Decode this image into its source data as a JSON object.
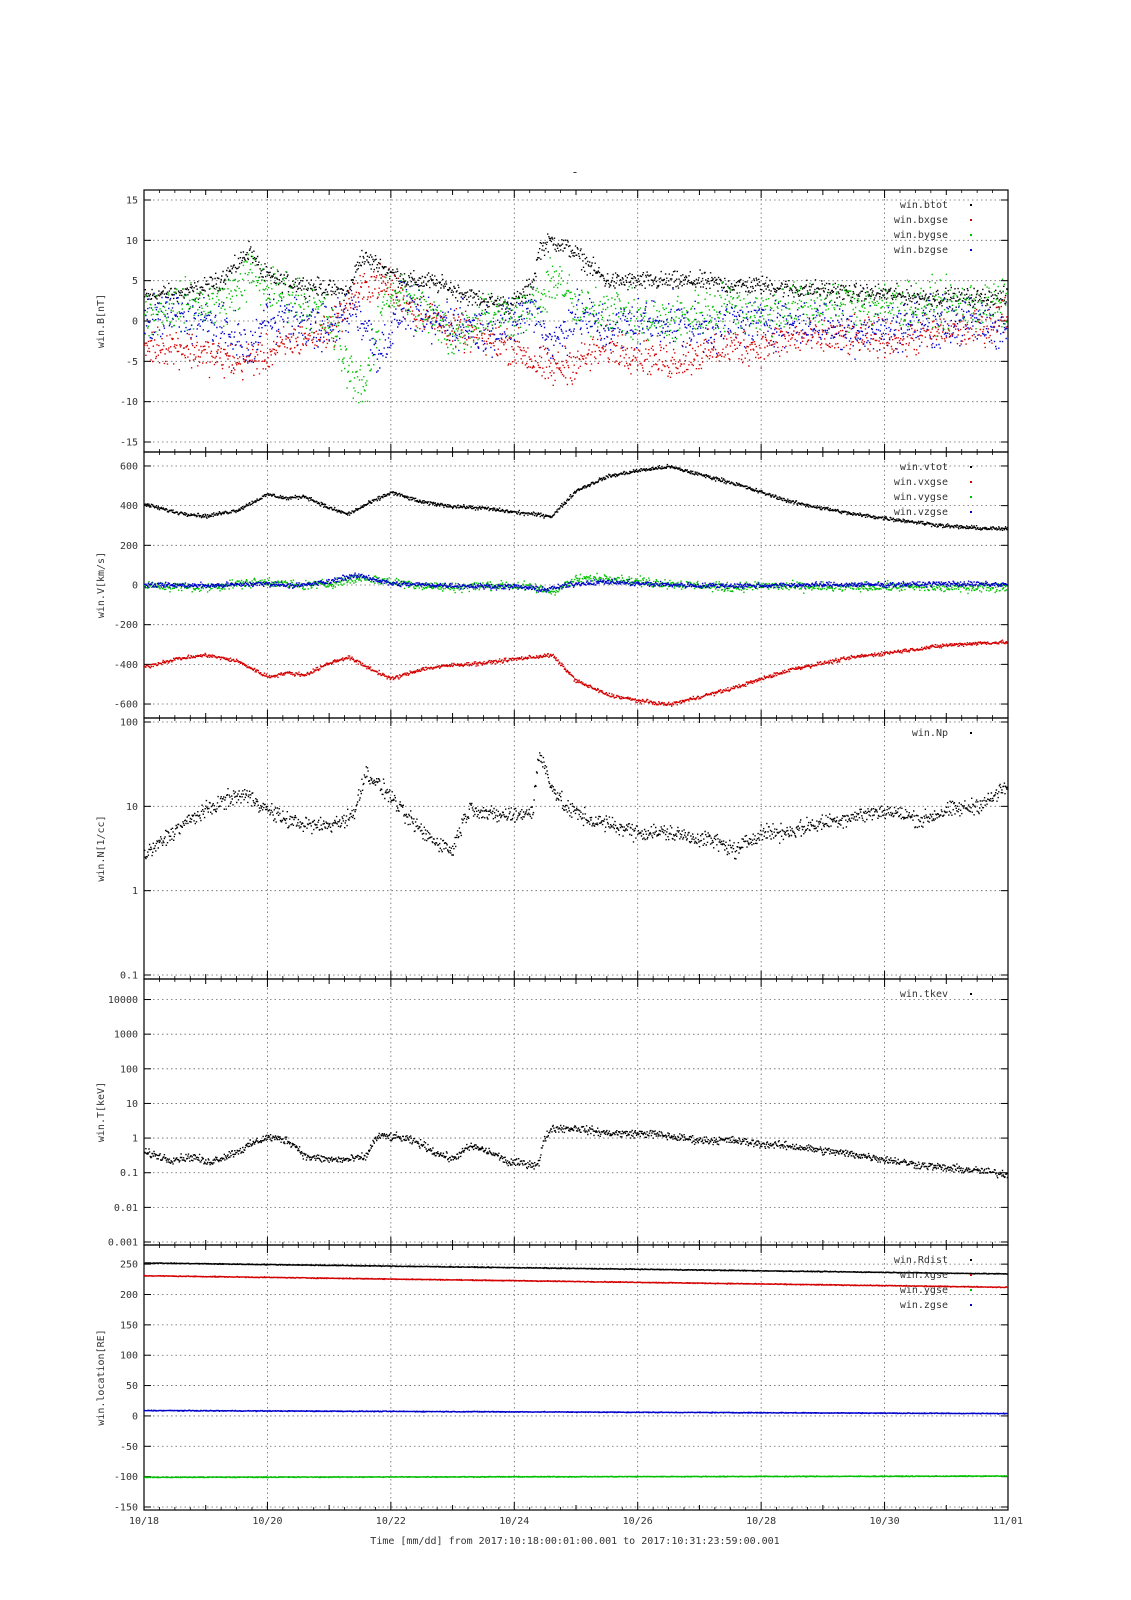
{
  "figure": {
    "title": "-",
    "xaxis_label": "Time [mm/dd]  from 2017:10:18:00:01:00.001  to  2017:10:31:23:59:00.001",
    "x_ticks": [
      "10/18",
      "10/20",
      "10/22",
      "10/24",
      "10/26",
      "10/28",
      "10/30",
      "11/01"
    ]
  },
  "colors": {
    "black": "#000000",
    "red": "#d40000",
    "green": "#00c000",
    "blue": "#0000cc"
  },
  "chart_data": [
    {
      "type": "scatter",
      "ylabel": "win.B[nT]",
      "scale": "linear",
      "ylim": [
        -15,
        15
      ],
      "yticks": [
        "15",
        "10",
        "5",
        "0",
        "-5",
        "-10",
        "-15"
      ],
      "ytick_values": [
        15,
        10,
        5,
        0,
        -5,
        -10,
        -15
      ],
      "grid": true,
      "legend_position": "top-right",
      "x_unit": "days since 10/18",
      "series": [
        {
          "name": "win.btot",
          "color": "black",
          "noise": 0.7,
          "x": [
            0,
            0.3,
            0.6,
            0.9,
            1.2,
            1.5,
            1.7,
            1.9,
            2.2,
            2.6,
            3.0,
            3.3,
            3.5,
            3.8,
            4.0,
            4.3,
            4.6,
            5.0,
            5.3,
            5.6,
            5.9,
            6.1,
            6.3,
            6.4,
            6.6,
            6.9,
            7.2,
            7.5,
            8.0,
            8.5,
            9.0,
            9.5,
            10.0,
            10.5,
            11.0,
            11.5,
            12.0,
            12.5,
            13.0,
            13.5,
            14.0
          ],
          "y": [
            3,
            3.5,
            3.5,
            4,
            5,
            7,
            9,
            6,
            5,
            4.5,
            4,
            3.5,
            8,
            7,
            6,
            5,
            5,
            4,
            3,
            2.5,
            2,
            3,
            5,
            9,
            10,
            9,
            7,
            5,
            5,
            5,
            5,
            4.5,
            4.5,
            4,
            4,
            3.5,
            3.5,
            3,
            3,
            3,
            3
          ]
        },
        {
          "name": "win.bxgse",
          "color": "red",
          "noise": 1.4,
          "x": [
            0,
            0.5,
            1.0,
            1.5,
            2.0,
            2.5,
            3.0,
            3.4,
            3.7,
            4.0,
            4.5,
            5.0,
            5.5,
            6.0,
            6.3,
            6.6,
            7.0,
            7.5,
            8.0,
            8.5,
            9.0,
            9.5,
            10.0,
            10.5,
            11.0,
            11.5,
            12.0,
            12.5,
            13.0,
            13.5,
            14.0
          ],
          "y": [
            -3,
            -3,
            -4,
            -5,
            -4,
            -2,
            -1,
            3,
            5,
            4,
            1,
            -1,
            -2,
            -3,
            -5,
            -6,
            -5,
            -3,
            -4,
            -5,
            -4,
            -3,
            -3,
            -2,
            -2,
            -2,
            -2,
            -2,
            -1,
            -1,
            1
          ]
        },
        {
          "name": "win.bygse",
          "color": "green",
          "noise": 1.8,
          "x": [
            0,
            0.5,
            1.0,
            1.4,
            1.7,
            2.0,
            2.5,
            3.0,
            3.3,
            3.6,
            3.9,
            4.2,
            4.6,
            5.0,
            5.5,
            6.0,
            6.4,
            6.7,
            7.0,
            7.5,
            8.0,
            8.5,
            9.0,
            9.5,
            10.0,
            10.5,
            11.0,
            11.5,
            12.0,
            12.5,
            13.0,
            13.5,
            14.0
          ],
          "y": [
            1,
            2,
            2,
            3,
            6,
            4,
            3,
            0,
            -6,
            -8,
            4,
            3,
            1,
            -2,
            1,
            1,
            2,
            6,
            1,
            2,
            0,
            0,
            1,
            2,
            1,
            2,
            2,
            2,
            2,
            2,
            2,
            2,
            2
          ]
        },
        {
          "name": "win.bzgse",
          "color": "blue",
          "noise": 1.8,
          "x": [
            0,
            0.5,
            1.0,
            1.5,
            1.7,
            2.0,
            2.5,
            3.0,
            3.4,
            3.8,
            4.2,
            4.6,
            5.0,
            5.5,
            6.0,
            6.3,
            6.6,
            7.0,
            7.5,
            8.0,
            8.5,
            9.0,
            9.5,
            10.0,
            10.5,
            11.0,
            11.5,
            12.0,
            12.5,
            13.0,
            13.5,
            14.0
          ],
          "y": [
            0,
            1,
            0,
            -2,
            -4,
            1,
            0,
            -1,
            2,
            -4,
            2,
            0,
            0,
            -1,
            0,
            2,
            -3,
            1,
            -1,
            0,
            0,
            -1,
            0,
            0,
            0,
            0,
            -1,
            -1,
            0,
            0,
            0,
            -1
          ]
        }
      ]
    },
    {
      "type": "scatter",
      "ylabel": "win.V[km/s]",
      "scale": "linear",
      "ylim": [
        -620,
        620
      ],
      "yticks": [
        "600",
        "400",
        "200",
        "0",
        "-200",
        "-400",
        "-600"
      ],
      "ytick_values": [
        600,
        400,
        200,
        0,
        -200,
        -400,
        -600
      ],
      "grid": true,
      "legend_position": "top-right",
      "x_unit": "days since 10/18",
      "series": [
        {
          "name": "win.vtot",
          "color": "black",
          "noise": 6,
          "x": [
            0,
            0.5,
            1.0,
            1.5,
            2.0,
            2.3,
            2.6,
            3.0,
            3.3,
            3.6,
            4.0,
            4.5,
            5.0,
            5.5,
            6.0,
            6.3,
            6.6,
            7.0,
            7.5,
            8.0,
            8.5,
            9.0,
            9.5,
            10.0,
            10.5,
            11.0,
            11.5,
            12.0,
            12.5,
            13.0,
            13.5,
            14.0
          ],
          "y": [
            410,
            370,
            350,
            380,
            460,
            440,
            450,
            390,
            360,
            410,
            470,
            420,
            400,
            390,
            370,
            360,
            350,
            480,
            550,
            580,
            600,
            560,
            520,
            470,
            420,
            390,
            360,
            340,
            320,
            300,
            290,
            285
          ]
        },
        {
          "name": "win.vxgse",
          "color": "red",
          "noise": 6,
          "x": [
            0,
            0.5,
            1.0,
            1.5,
            2.0,
            2.3,
            2.6,
            3.0,
            3.3,
            3.6,
            4.0,
            4.5,
            5.0,
            5.5,
            6.0,
            6.3,
            6.6,
            7.0,
            7.5,
            8.0,
            8.5,
            9.0,
            9.5,
            10.0,
            10.5,
            11.0,
            11.5,
            12.0,
            12.5,
            13.0,
            13.5,
            14.0
          ],
          "y": [
            -410,
            -370,
            -350,
            -380,
            -460,
            -440,
            -450,
            -390,
            -360,
            -410,
            -470,
            -420,
            -400,
            -390,
            -370,
            -360,
            -350,
            -480,
            -550,
            -580,
            -600,
            -560,
            -520,
            -470,
            -420,
            -390,
            -360,
            -340,
            -320,
            -300,
            -290,
            -285
          ]
        },
        {
          "name": "win.vygse",
          "color": "green",
          "noise": 14,
          "x": [
            0,
            1.0,
            1.5,
            2.0,
            2.5,
            3.0,
            3.5,
            4.0,
            4.5,
            5.0,
            5.5,
            6.0,
            6.3,
            6.6,
            7.0,
            7.5,
            8.0,
            8.5,
            9.0,
            9.5,
            10.0,
            11.0,
            12.0,
            13.0,
            14.0
          ],
          "y": [
            0,
            -10,
            10,
            20,
            0,
            10,
            40,
            20,
            0,
            -10,
            0,
            0,
            -10,
            -30,
            30,
            40,
            20,
            10,
            0,
            -10,
            0,
            -10,
            -5,
            -10,
            -5
          ]
        },
        {
          "name": "win.vzgse",
          "color": "blue",
          "noise": 8,
          "x": [
            0,
            1.0,
            2.0,
            2.5,
            3.0,
            3.2,
            3.5,
            4.0,
            5.0,
            6.0,
            6.5,
            7.0,
            7.5,
            8.0,
            9.0,
            10.0,
            11.0,
            12.0,
            13.0,
            14.0
          ],
          "y": [
            5,
            0,
            10,
            0,
            20,
            40,
            50,
            10,
            0,
            -5,
            -20,
            10,
            20,
            10,
            0,
            0,
            5,
            5,
            10,
            5
          ]
        }
      ]
    },
    {
      "type": "scatter",
      "ylabel": "win.N[1/cc]",
      "scale": "log",
      "ylim": [
        0.1,
        100
      ],
      "yticks": [
        "100",
        "10",
        "1",
        "0.1"
      ],
      "ytick_values": [
        100,
        10,
        1,
        0.1
      ],
      "grid": true,
      "legend_position": "top-right",
      "x_unit": "days since 10/18",
      "series": [
        {
          "name": "win.Np",
          "color": "black",
          "noise": 0.06,
          "x": [
            0,
            0.3,
            0.6,
            1.0,
            1.3,
            1.6,
            1.8,
            2.0,
            2.3,
            2.7,
            3.0,
            3.2,
            3.4,
            3.6,
            3.8,
            4.2,
            4.5,
            4.7,
            5.0,
            5.3,
            5.6,
            6.0,
            6.3,
            6.4,
            6.6,
            6.8,
            7.2,
            7.6,
            8.0,
            8.4,
            8.8,
            9.2,
            9.6,
            10.0,
            10.4,
            10.8,
            11.2,
            11.6,
            12.0,
            12.3,
            12.6,
            13.0,
            13.4,
            13.7,
            14.0
          ],
          "y": [
            2.5,
            4,
            6,
            9,
            12,
            14,
            12,
            9,
            7,
            6,
            6,
            7,
            8,
            25,
            18,
            8,
            5,
            4,
            3,
            10,
            8,
            8,
            9,
            40,
            17,
            10,
            7,
            6,
            5,
            5,
            4.5,
            4,
            3,
            5,
            5,
            6,
            7,
            8,
            9,
            8,
            7,
            9,
            10,
            12,
            18
          ]
        }
      ]
    },
    {
      "type": "scatter",
      "ylabel": "win.T[keV]",
      "scale": "log",
      "ylim": [
        0.001,
        30000
      ],
      "yticks": [
        "10000",
        "1000",
        "100",
        "10",
        "1",
        "0.1",
        "0.01",
        "0.001"
      ],
      "ytick_values": [
        10000,
        1000,
        100,
        10,
        1,
        0.1,
        0.01,
        0.001
      ],
      "grid": true,
      "legend_position": "top-right",
      "x_unit": "days since 10/18",
      "series": [
        {
          "name": "win.tkev",
          "color": "black",
          "noise": 0.07,
          "x": [
            0,
            0.4,
            0.8,
            1.0,
            1.3,
            1.6,
            2.0,
            2.3,
            2.6,
            3.0,
            3.3,
            3.6,
            3.8,
            4.1,
            4.4,
            4.7,
            5.0,
            5.3,
            5.6,
            5.9,
            6.1,
            6.3,
            6.4,
            6.6,
            7.0,
            7.4,
            7.8,
            8.2,
            8.6,
            9.0,
            9.5,
            10.0,
            10.5,
            11.0,
            11.5,
            12.0,
            12.5,
            13.0,
            13.5,
            14.0
          ],
          "y": [
            0.4,
            0.25,
            0.3,
            0.2,
            0.3,
            0.5,
            1.1,
            0.9,
            0.3,
            0.25,
            0.25,
            0.3,
            1.2,
            1.1,
            0.8,
            0.4,
            0.25,
            0.6,
            0.4,
            0.2,
            0.2,
            0.18,
            0.2,
            2.0,
            2.0,
            1.5,
            1.4,
            1.4,
            1.1,
            0.9,
            0.9,
            0.7,
            0.6,
            0.45,
            0.35,
            0.25,
            0.18,
            0.14,
            0.12,
            0.09
          ]
        }
      ]
    },
    {
      "type": "scatter",
      "ylabel": "win.location[RE]",
      "scale": "linear",
      "ylim": [
        -150,
        270
      ],
      "yticks": [
        "250",
        "200",
        "150",
        "100",
        "50",
        "0",
        "-50",
        "-100",
        "-150"
      ],
      "ytick_values": [
        250,
        200,
        150,
        100,
        50,
        0,
        -50,
        -100,
        -150
      ],
      "grid": true,
      "legend_position": "top-right",
      "x_unit": "days since 10/18",
      "series": [
        {
          "name": "win.Rdist",
          "color": "black",
          "noise": 0.4,
          "x": [
            0,
            14
          ],
          "y": [
            253,
            235
          ]
        },
        {
          "name": "win.xgse",
          "color": "red",
          "noise": 0.4,
          "x": [
            0,
            14
          ],
          "y": [
            232,
            213
          ]
        },
        {
          "name": "win.ygse",
          "color": "green",
          "noise": 0.4,
          "x": [
            0,
            14
          ],
          "y": [
            -100,
            -98
          ]
        },
        {
          "name": "win.zgse",
          "color": "blue",
          "noise": 0.4,
          "x": [
            0,
            14
          ],
          "y": [
            10,
            5
          ]
        }
      ]
    }
  ]
}
